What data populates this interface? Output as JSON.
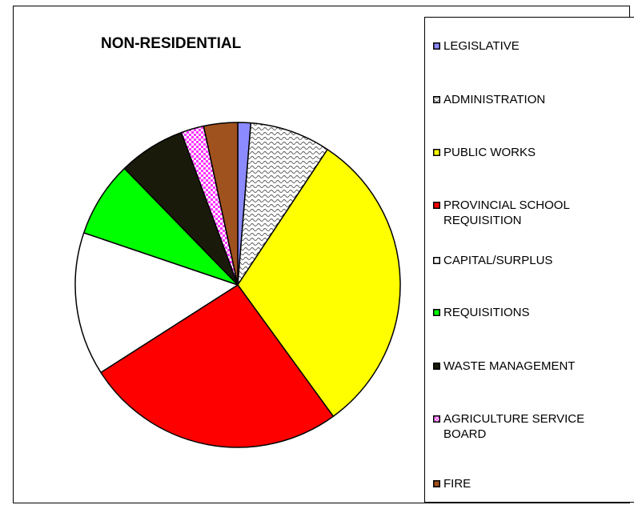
{
  "chart_data": {
    "type": "pie",
    "title": "NON-RESIDENTIAL",
    "legend_position": "right",
    "series": [
      {
        "name": "LEGISLATIVE",
        "value": 1.3,
        "color": "#8b8bff",
        "pattern": "solid"
      },
      {
        "name": "ADMINISTRATION",
        "value": 8.1,
        "color": "#ffffff",
        "pattern": "wave"
      },
      {
        "name": "PUBLIC WORKS",
        "value": 31.0,
        "color": "#ffff00",
        "pattern": "solid"
      },
      {
        "name": "PROVINCIAL SCHOOL REQUISITION",
        "value": 26.2,
        "color": "#ff0000",
        "pattern": "solid"
      },
      {
        "name": "CAPITAL/SURPLUS",
        "value": 14.4,
        "color": "#ffffff",
        "pattern": "solid"
      },
      {
        "name": "REQUISITIONS",
        "value": 7.6,
        "color": "#00ff00",
        "pattern": "solid"
      },
      {
        "name": "WASTE MANAGEMENT",
        "value": 6.7,
        "color": "#1a1a0a",
        "pattern": "solid"
      },
      {
        "name": "AGRICULTURE SERVICE BOARD",
        "value": 2.3,
        "color": "#ff33ff",
        "pattern": "dots"
      },
      {
        "name": "FIRE",
        "value": 3.4,
        "color": "#a0521e",
        "pattern": "solid"
      }
    ],
    "legend_lines": [
      [
        "LEGISLATIVE"
      ],
      [
        "ADMINISTRATION"
      ],
      [
        "PUBLIC WORKS"
      ],
      [
        "PROVINCIAL SCHOOL",
        "REQUISITION"
      ],
      [
        "CAPITAL/SURPLUS"
      ],
      [
        "REQUISITIONS"
      ],
      [
        "WASTE MANAGEMENT"
      ],
      [
        "AGRICULTURE SERVICE",
        "BOARD"
      ],
      [
        "FIRE"
      ]
    ]
  }
}
